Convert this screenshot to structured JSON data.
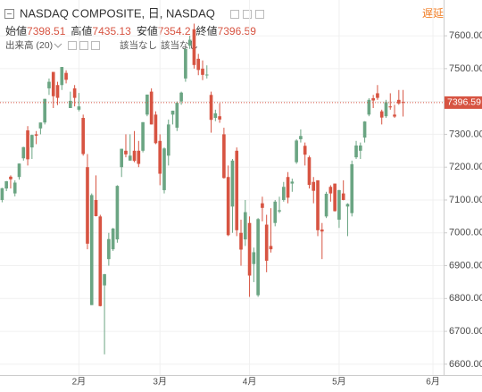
{
  "chart_data": {
    "type": "candlestick",
    "title": "NASDAQ COMPOSITE, 日, NASDAQ",
    "delay_label": "遅延",
    "ohlc_legend": [
      {
        "label": "始値",
        "value": "7398.51"
      },
      {
        "label": "高値",
        "value": "7435.13"
      },
      {
        "label": "安値",
        "value": "7354.2"
      },
      {
        "label": "終値",
        "value": "7396.59"
      }
    ],
    "volume_label": "出来高 (20)",
    "indicator_notes": [
      "該当なし",
      "該当なし"
    ],
    "up_color": "#6ba583",
    "down_color": "#d75442",
    "grid": true,
    "categories": [
      null,
      null,
      null,
      null,
      null,
      null,
      null,
      null,
      null,
      null,
      null,
      null,
      null,
      null,
      null,
      null,
      null,
      null,
      "2月",
      null,
      null,
      null,
      null,
      null,
      null,
      null,
      null,
      null,
      null,
      null,
      null,
      null,
      null,
      null,
      null,
      null,
      null,
      "3月",
      null,
      null,
      null,
      null,
      null,
      null,
      null,
      null,
      null,
      null,
      null,
      null,
      null,
      null,
      null,
      null,
      null,
      null,
      null,
      null,
      "4月",
      null,
      null,
      null,
      null,
      null,
      null,
      null,
      null,
      null,
      null,
      null,
      null,
      null,
      null,
      null,
      null,
      null,
      null,
      null,
      null,
      "5月",
      null,
      null,
      null,
      null,
      null,
      null,
      null,
      null,
      null,
      null,
      null,
      null,
      null,
      null,
      null,
      null,
      null,
      null,
      null,
      null,
      null,
      "6月",
      null,
      null
    ],
    "open": [
      7100,
      7135,
      7171,
      7120,
      7170,
      7227,
      7312,
      7260,
      7300,
      7318,
      7336,
      7440,
      7490,
      7450,
      7450,
      7487,
      7380,
      7440,
      7375,
      7350,
      7200,
      6780,
      7100,
      7050,
      6840,
      6920,
      6950,
      6980,
      7200,
      7250,
      7220,
      7250,
      7250,
      7250,
      7360,
      7430,
      7360,
      7280,
      7130,
      7235,
      7360,
      7320,
      7400,
      7470,
      7570,
      7620,
      7530,
      7500,
      7480,
      7420,
      7350,
      7355,
      7300,
      7170,
      7080,
      7250,
      7000,
      6980,
      7030,
      6905,
      6810,
      7090,
      7025,
      6960,
      7030,
      7065,
      7100,
      7170,
      7150,
      7215,
      7285,
      7265,
      7230,
      7155,
      7160,
      7010,
      7050,
      7140,
      7150,
      7040,
      7120,
      7080,
      7060,
      7230,
      7250,
      7290,
      7360,
      7410,
      7425,
      7370,
      7355,
      7385,
      7360,
      7405,
      7398.51,
      null,
      null,
      null,
      null,
      null,
      null,
      null,
      null,
      null
    ],
    "high": [
      7137,
      7158,
      7175,
      7160,
      7211,
      7262,
      7325,
      7299,
      7310,
      7336,
      7408,
      7470,
      7490,
      7460,
      7505,
      7495,
      7430,
      7450,
      7426,
      7360,
      7240,
      7120,
      7175,
      7055,
      6875,
      7000,
      7015,
      7145,
      7256,
      7300,
      7300,
      7310,
      7280,
      7337,
      7421,
      7440,
      7370,
      7300,
      7260,
      7345,
      7372,
      7400,
      7430,
      7560,
      7600,
      7637,
      7545,
      7525,
      7510,
      7430,
      7375,
      7395,
      7320,
      7205,
      7225,
      7260,
      7040,
      7100,
      7050,
      6955,
      7045,
      7110,
      7055,
      7075,
      7100,
      7110,
      7155,
      7185,
      7165,
      7285,
      7315,
      7275,
      7235,
      7170,
      7160,
      7030,
      7125,
      7145,
      7150,
      7131,
      7160,
      7090,
      7220,
      7280,
      7275,
      7340,
      7410,
      7420,
      7450,
      7375,
      7405,
      7425,
      7390,
      7435,
      7435.13,
      null,
      null,
      null,
      null,
      null,
      null,
      null,
      null,
      null
    ],
    "low": [
      7093,
      7127,
      7135,
      7111,
      7162,
      7220,
      7205,
      7225,
      7270,
      7300,
      7330,
      7420,
      7380,
      7389,
      7435,
      7455,
      7380,
      7385,
      7370,
      7235,
      6950,
      6780,
      7050,
      6776,
      6630,
      6900,
      6945,
      6970,
      7170,
      7230,
      7220,
      7215,
      7200,
      7245,
      7355,
      7330,
      7270,
      7145,
      7120,
      7205,
      7330,
      7310,
      7390,
      7460,
      7560,
      7500,
      7480,
      7465,
      7470,
      7305,
      7340,
      7335,
      7165,
      6990,
      7000,
      6990,
      6900,
      6960,
      6805,
      6850,
      6805,
      7035,
      6880,
      6940,
      7020,
      7060,
      7095,
      7090,
      7125,
      7210,
      7275,
      7205,
      7135,
      7090,
      6990,
      6920,
      7045,
      7095,
      7065,
      7015,
      7099,
      6990,
      7050,
      7225,
      7225,
      7275,
      7355,
      7380,
      7405,
      7330,
      7350,
      7375,
      7350,
      7390,
      7354.2,
      null,
      null,
      null,
      null,
      null,
      null,
      null,
      null,
      null
    ],
    "close": [
      7136,
      7157,
      7163,
      7153,
      7211,
      7261,
      7224,
      7298,
      7296,
      7336,
      7408,
      7460,
      7416,
      7411,
      7505,
      7466,
      7402,
      7411,
      7385,
      7240,
      6967,
      7115,
      7051,
      6777,
      6874,
      6981,
      7013,
      7143,
      7256,
      7239,
      7235,
      7219,
      7210,
      7337,
      7421,
      7330,
      7273,
      7180,
      7257,
      7330,
      7372,
      7396,
      7427,
      7560,
      7588,
      7511,
      7496,
      7481,
      7482,
      7344,
      7364,
      7345,
      7167,
      6993,
      7220,
      7008,
      6949,
      7063,
      6870,
      6941,
      7042,
      7076,
      6915,
      6950,
      7095,
      7069,
      7140,
      7107,
      7156,
      7281,
      7295,
      7238,
      7146,
      7128,
      7008,
      7004,
      7119,
      7120,
      7066,
      7130,
      7100,
      7088,
      7209,
      7266,
      7266,
      7339,
      7405,
      7403,
      7411,
      7351,
      7398,
      7382,
      7354,
      7394,
      7396.59,
      null,
      null,
      null,
      null,
      null,
      null,
      null,
      null,
      null
    ],
    "last_price": {
      "value": 7396.59,
      "label": "7396.59"
    },
    "ylim": [
      6567,
      7709
    ],
    "yticks": [
      {
        "value": 6600,
        "label": "6600.00"
      },
      {
        "value": 6700,
        "label": "6700.00"
      },
      {
        "value": 6800,
        "label": "6800.00"
      },
      {
        "value": 6900,
        "label": "6900.00"
      },
      {
        "value": 7000,
        "label": "7000.00"
      },
      {
        "value": 7100,
        "label": "7100.00"
      },
      {
        "value": 7200,
        "label": "7200.00"
      },
      {
        "value": 7300,
        "label": "7300.00"
      },
      {
        "value": 7400,
        "label": "7400.00"
      },
      {
        "value": 7500,
        "label": "7500.00"
      },
      {
        "value": 7600,
        "label": "7600.00"
      }
    ]
  }
}
